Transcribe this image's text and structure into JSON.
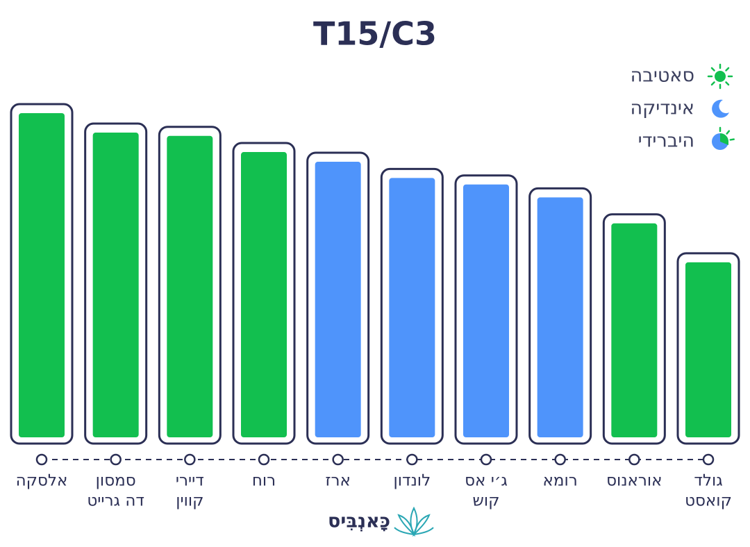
{
  "chart_data": {
    "type": "bar",
    "title": "T15/C3",
    "categories": [
      [
        "אלסקה"
      ],
      [
        "סמסון",
        "דה גרייט"
      ],
      [
        "דיירי",
        "קווין"
      ],
      [
        "רוח"
      ],
      [
        "ארז"
      ],
      [
        "לונדון"
      ],
      [
        "ג׳י אס",
        "קוש"
      ],
      [
        "רומא"
      ],
      [
        "אוראנוס"
      ],
      [
        "גולד",
        "קואסט"
      ]
    ],
    "values": [
      100,
      94,
      93,
      88,
      85,
      80,
      78,
      74,
      66,
      54
    ],
    "colors": [
      "#12bf4f",
      "#12bf4f",
      "#12bf4f",
      "#12bf4f",
      "#4f94fb",
      "#4f94fb",
      "#4f94fb",
      "#4f94fb",
      "#12bf4f",
      "#12bf4f"
    ],
    "ylim": [
      0,
      100
    ],
    "legend": [
      {
        "name": "סאטיבה",
        "color": "#12bf4f"
      },
      {
        "name": "אינדיקה",
        "color": "#4f94fb"
      },
      {
        "name": "היברידי",
        "color": "#12bf4f"
      }
    ],
    "logo": "כָּאנְבִּיס"
  }
}
